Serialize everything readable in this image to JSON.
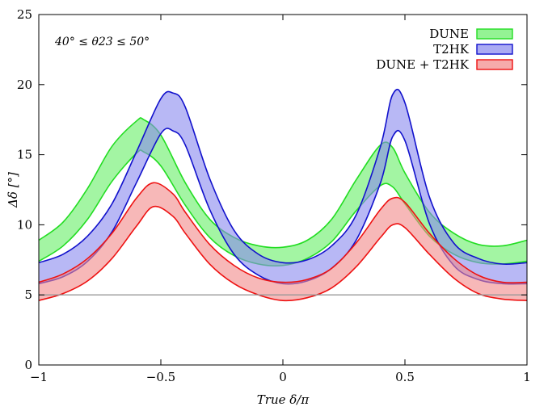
{
  "chart_data": {
    "type": "area",
    "title": "",
    "xlabel": "True δ/π",
    "ylabel": "Δδ [°]",
    "xlim": [
      -1,
      1
    ],
    "ylim": [
      0,
      25
    ],
    "xticks": [
      -1,
      -0.5,
      0,
      0.5,
      1
    ],
    "xtick_labels": [
      "−1",
      "−0.5",
      "0",
      "0.5",
      "1"
    ],
    "yticks": [
      0,
      5,
      10,
      15,
      20,
      25
    ],
    "ytick_labels": [
      "0",
      "5",
      "10",
      "15",
      "20",
      "25"
    ],
    "annotation": "40° ≤ θ23 ≤ 50°",
    "legend_position": "top-right",
    "grid": false,
    "reference_line": {
      "y": 5,
      "color": "#999999"
    },
    "series": [
      {
        "name": "DUNE",
        "stroke": "#22dd22",
        "fill": "#66ee66",
        "x": [
          -1.0,
          -0.9,
          -0.8,
          -0.7,
          -0.6,
          -0.57,
          -0.5,
          -0.4,
          -0.3,
          -0.2,
          -0.1,
          0.0,
          0.1,
          0.2,
          0.3,
          0.4,
          0.45,
          0.5,
          0.6,
          0.7,
          0.8,
          0.9,
          1.0
        ],
        "upper": [
          8.9,
          10.2,
          12.6,
          15.6,
          17.4,
          17.5,
          16.4,
          13.0,
          10.4,
          9.1,
          8.5,
          8.4,
          8.9,
          10.4,
          13.2,
          15.7,
          15.5,
          13.7,
          10.9,
          9.4,
          8.6,
          8.5,
          8.9
        ],
        "lower": [
          7.4,
          8.5,
          10.4,
          13.1,
          15.1,
          15.2,
          14.2,
          11.4,
          9.1,
          7.8,
          7.2,
          7.1,
          7.6,
          8.8,
          11.0,
          12.8,
          12.7,
          11.5,
          9.2,
          7.9,
          7.3,
          7.2,
          7.4
        ]
      },
      {
        "name": "T2HK",
        "stroke": "#1111cc",
        "fill": "#8888ee",
        "x": [
          -1.0,
          -0.9,
          -0.8,
          -0.7,
          -0.6,
          -0.5,
          -0.45,
          -0.4,
          -0.3,
          -0.2,
          -0.1,
          0.0,
          0.1,
          0.2,
          0.3,
          0.4,
          0.45,
          0.5,
          0.6,
          0.7,
          0.8,
          0.9,
          1.0
        ],
        "upper": [
          7.3,
          7.9,
          9.2,
          11.5,
          15.2,
          19.0,
          19.4,
          18.4,
          13.3,
          9.6,
          7.9,
          7.3,
          7.5,
          8.5,
          10.7,
          15.6,
          19.3,
          18.7,
          12.0,
          8.7,
          7.6,
          7.2,
          7.3
        ],
        "lower": [
          5.8,
          6.3,
          7.4,
          9.5,
          13.0,
          16.5,
          16.7,
          15.7,
          11.1,
          7.9,
          6.4,
          5.8,
          6.0,
          6.9,
          8.9,
          13.0,
          16.3,
          16.0,
          10.1,
          7.1,
          6.1,
          5.8,
          5.8
        ]
      },
      {
        "name": "DUNE + T2HK",
        "stroke": "#ee1111",
        "fill": "#f28888",
        "x": [
          -1.0,
          -0.9,
          -0.8,
          -0.7,
          -0.6,
          -0.53,
          -0.45,
          -0.4,
          -0.3,
          -0.2,
          -0.1,
          0.0,
          0.1,
          0.2,
          0.3,
          0.4,
          0.45,
          0.5,
          0.6,
          0.7,
          0.8,
          0.9,
          1.0
        ],
        "upper": [
          5.9,
          6.5,
          7.6,
          9.4,
          11.9,
          13.0,
          12.2,
          10.9,
          8.6,
          7.1,
          6.2,
          5.9,
          6.1,
          6.9,
          8.7,
          11.1,
          11.9,
          11.6,
          9.4,
          7.6,
          6.4,
          5.9,
          5.9
        ],
        "lower": [
          4.6,
          5.1,
          6.0,
          7.6,
          9.9,
          11.3,
          10.6,
          9.4,
          7.2,
          5.8,
          5.0,
          4.6,
          4.8,
          5.5,
          7.0,
          9.1,
          10.0,
          9.8,
          7.9,
          6.2,
          5.1,
          4.7,
          4.6
        ]
      }
    ]
  }
}
